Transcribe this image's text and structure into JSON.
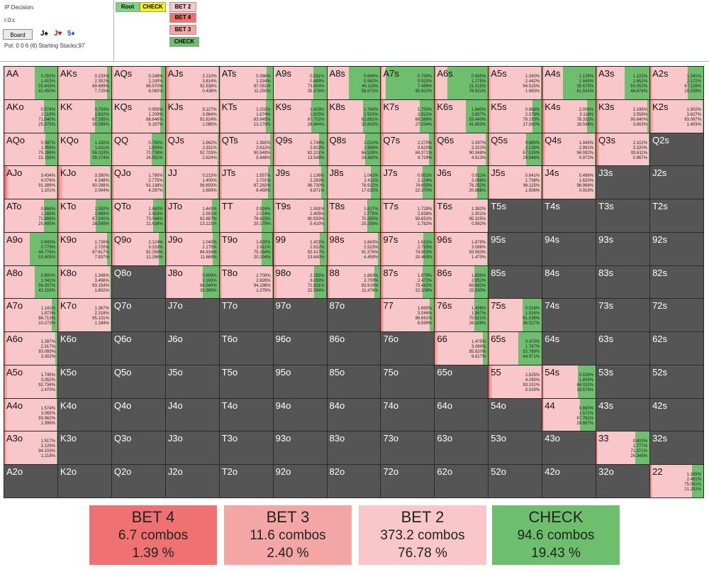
{
  "header": {
    "decision": "IP Decision:",
    "line": "r:0:c",
    "board_button": "Board",
    "board_cards": [
      {
        "text": "J♠",
        "color": "#000000"
      },
      {
        "text": "J♥",
        "color": "#d40000"
      },
      {
        "text": "5♦",
        "color": "#1f4fd8"
      }
    ],
    "pot_text": "Pot: 0 0 6 (6) Starting Stacks:97"
  },
  "nav": {
    "root": "Root",
    "check": "CHECK",
    "bet2": "BET 2",
    "bet4": "BET 4",
    "bet3": "BET 3",
    "check2": "CHECK"
  },
  "colors": {
    "bet4": "#f07171",
    "bet3": "#f4a6a6",
    "bet2": "#f9c7c9",
    "check": "#6dbf6d",
    "root": "#7cd67c",
    "check_nav": "#f5f500",
    "not_in_range": "#555555"
  },
  "ranks": [
    "A",
    "K",
    "Q",
    "J",
    "T",
    "9",
    "8",
    "7",
    "6",
    "5",
    "4",
    "3",
    "2"
  ],
  "cells": {
    "AA": [
      "0.292%",
      "1.415%",
      "55.843%",
      "42.450%"
    ],
    "AKs": [
      "0.233%",
      "2.352%",
      "89.689%",
      "7.725%"
    ],
    "AQs": [
      "0.248%",
      "2.100%",
      "89.570%",
      "8.082%"
    ],
    "AJs": [
      "3.210%",
      "3.814%",
      "92.538%",
      "0.438%"
    ],
    "ATs": [
      "0.366%",
      "1.334%",
      "87.051%",
      "11.250%"
    ],
    "A9s": [
      "0.531%",
      "0.489%",
      "73.604%",
      "25.376%"
    ],
    "A8s": [
      "0.646%",
      "0.562%",
      "40.118%",
      "58.672%"
    ],
    "A7s": [
      "0.759%",
      "0.920%",
      "7.499%",
      "90.822%"
    ],
    "A6s": [
      "0.685%",
      "1.178%",
      "21.015%",
      "76.922%"
    ],
    "A5s": [
      "1.340%",
      "2.442%",
      "94.525%",
      "1.693%"
    ],
    "A4s": [
      "1.139%",
      "1.645%",
      "35.675%",
      "61.541%"
    ],
    "A3s": [
      "1.222%",
      "1.652%",
      "50.052%",
      "46.674%"
    ],
    "A2s": [
      "1.341%",
      "2.172%",
      "67.228%",
      "29.258%"
    ],
    "AKo": [
      "0.574%",
      "2.119%",
      "71.940%",
      "25.375%"
    ],
    "KK": [
      "0.704%",
      "1.632%",
      "67.265%",
      "30.399%"
    ],
    "KQs": [
      "0.959%",
      "1.209%",
      "88.646%",
      "9.167%"
    ],
    "KJs": [
      "3.127%",
      "3.964%",
      "91.824%",
      "1.085%"
    ],
    "KTs": [
      "1.202%",
      "1.674%",
      "83.945%",
      "13.179%"
    ],
    "K9s": [
      "1.429%",
      "1.925%",
      "67.702%",
      "28.944%"
    ],
    "K8s": [
      "1.764%",
      "2.553%",
      "62.881%",
      "32.802%"
    ],
    "K7s": [
      "1.750%",
      "2.812%",
      "68.366%",
      "27.034%"
    ],
    "K6s": [
      "1.840%",
      "2.857%",
      "53.440%",
      "41.863%"
    ],
    "K5s": [
      "0.868%",
      "2.378%",
      "79.193%",
      "17.560%"
    ],
    "K4s": [
      "2.004%",
      "3.116%",
      "78.332%",
      "16.548%"
    ],
    "K3s": [
      "2.198%",
      "3.558%",
      "90.640%",
      "3.603%"
    ],
    "K2s": [
      "1.902%",
      "3.627%",
      "93.067%",
      "1.403%"
    ],
    "AQo": [
      "0.587%",
      "1.959%",
      "75.286%",
      "22.159%"
    ],
    "KQo": [
      "1.192%",
      "1.611%",
      "58.023%",
      "39.174%"
    ],
    "QQ": [
      "0.750%",
      "1.959%",
      "72.739%",
      "24.551%"
    ],
    "QJs": [
      "1.662%",
      "2.811%",
      "92.703%",
      "2.624%"
    ],
    "QTs": [
      "1.392%",
      "2.612%",
      "90.549%",
      "5.446%"
    ],
    "Q9s": [
      "1.749%",
      "2.602%",
      "82.101%",
      "13.549%"
    ],
    "Q8s": [
      "2.010%",
      "2.968%",
      "66.539%",
      "28.482%"
    ],
    "Q7s": [
      "2.270%",
      "3.620%",
      "84.371%",
      "9.739%"
    ],
    "Q6s": [
      "2.097%",
      "3.322%",
      "90.068%",
      "4.513%"
    ],
    "Q5s": [
      "0.885%",
      "2.138%",
      "67.028%",
      "29.948%"
    ],
    "Q4s": [
      "1.945%",
      "2.991%",
      "94.092%",
      "0.972%"
    ],
    "Q3s": [
      "2.102%",
      "3.320%",
      "93.611%",
      "0.967%"
    ],
    "Q2s": null,
    "AJo": [
      "3.434%",
      "4.076%",
      "91.389%",
      "1.101%"
    ],
    "KJo": [
      "3.350%",
      "4.348%",
      "90.298%",
      "2.004%"
    ],
    "QJo": [
      "1.790%",
      "2.775%",
      "91.138%",
      "4.297%"
    ],
    "JJ": [
      "0.213%",
      "1.400%",
      "96.693%",
      "1.693%"
    ],
    "JTs": [
      "1.557%",
      "2.701%",
      "87.282%",
      "8.459%"
    ],
    "J9s": [
      "1.136%",
      "2.263%",
      "86.730%",
      "9.871%"
    ],
    "J8s": [
      "1.042%",
      "2.411%",
      "78.922%",
      "17.625%"
    ],
    "J7s": [
      "0.851%",
      "2.124%",
      "74.655%",
      "22.370%"
    ],
    "J6s": [
      "0.811%",
      "2.068%",
      "76.252%",
      "20.868%"
    ],
    "J5s": [
      "0.641%",
      "1.738%",
      "96.115%",
      "1.506%"
    ],
    "J4s": [
      "0.496%",
      "1.620%",
      "96.966%",
      "0.919%"
    ],
    "J3s": null,
    "J2s": null,
    "ATo": [
      "0.668%",
      "1.165%",
      "72.668%",
      "25.495%"
    ],
    "KTo": [
      "1.592%",
      "2.469%",
      "67.341%",
      "28.598%"
    ],
    "QTo": [
      "1.860%",
      "2.953%",
      "73.046%",
      "21.638%"
    ],
    "JTo": [
      "1.441%",
      "2.551%",
      "82.887%",
      "13.121%"
    ],
    "TT": [
      "0.924%",
      "2.074%",
      "76.823%",
      "20.179%"
    ],
    "T9s": [
      "1.591%",
      "2.405%",
      "90.593%",
      "5.410%"
    ],
    "T8s": [
      "1.617%",
      "2.775%",
      "70.350%",
      "25.258%"
    ],
    "T7s": [
      "1.728%",
      "2.838%",
      "93.652%",
      "1.782%"
    ],
    "T6s": [
      "1.382%",
      "2.301%",
      "95.325%",
      "0.992%"
    ],
    "T5s": null,
    "T4s": null,
    "T3s": null,
    "T2s": null,
    "A9o": [
      "0.643%",
      "0.779%",
      "46.776%",
      "51.803%"
    ],
    "K9o": [
      "1.726%",
      "2.720%",
      "87.617%",
      "7.937%"
    ],
    "Q9o": [
      "2.124%",
      "3.333%",
      "82.258%",
      "12.286%"
    ],
    "J9o": [
      "1.040%",
      "2.175%",
      "84.916%",
      "11.869%"
    ],
    "T9o": [
      "1.620%",
      "2.811%",
      "75.164%",
      "20.204%"
    ],
    "99": [
      "1.421%",
      "2.922%",
      "82.417%",
      "13.840%"
    ],
    "98s": [
      "1.643%",
      "2.523%",
      "91.376%",
      "4.459%"
    ],
    "97s": [
      "1.621%",
      "2.793%",
      "74.953%",
      "20.463%"
    ],
    "96s": [
      "1.878%",
      "3.086%",
      "93.563%",
      "1.473%"
    ],
    "95s": null,
    "94s": null,
    "93s": null,
    "92s": null,
    "A8o": [
      "0.800%",
      "1.041%",
      "56.007%",
      "42.153%"
    ],
    "K8o": [
      "1.349%",
      "3.456%",
      "93.154%",
      "1.802%"
    ],
    "Q8o": null,
    "J8o": [
      "0.909%",
      "2.163%",
      "66.540%",
      "30.389%"
    ],
    "T8o": [
      "1.700%",
      "2.826%",
      "94.196%",
      "1.279%"
    ],
    "98o": [
      "2.285%",
      "3.093%",
      "71.831%",
      "22.594%"
    ],
    "88": [
      "1.663%",
      "2.739%",
      "83.919%",
      "11.478%"
    ],
    "87s": [
      "1.879%",
      "2.472%",
      "73.442%",
      "22.208%"
    ],
    "86s": [
      "1.835%",
      "2.852%",
      "69.682%",
      "25.530%"
    ],
    "85s": null,
    "84s": null,
    "83s": null,
    "82s": null,
    "A7o": [
      "1.141%",
      "1.873%",
      "86.713%",
      "10.273%"
    ],
    "K7o": [
      "1.367%",
      "2.318%",
      "95.131%",
      "1.184%"
    ],
    "Q7o": null,
    "J7o": null,
    "T7o": null,
    "97o": null,
    "87o": null,
    "77": [
      "1.665%",
      "3.046%",
      "86.691%",
      "8.599%"
    ],
    "76s": [
      "1.406%",
      "1.967%",
      "70.521%",
      "26.106%"
    ],
    "75s": [
      "0.519%",
      "1.916%",
      "61.038%",
      "36.527%"
    ],
    "74s": null,
    "73s": null,
    "72s": null,
    "A6o": [
      "1.287%",
      "2.317%",
      "93.093%",
      "3.302%"
    ],
    "K6o": null,
    "Q6o": null,
    "J6o": null,
    "T6o": null,
    "96o": null,
    "86o": null,
    "76o": null,
    "66": [
      "1.475%",
      "3.089%",
      "85.820%",
      "9.617%"
    ],
    "65s": [
      "0.473%",
      "1.767%",
      "52.789%",
      "44.971%"
    ],
    "64s": null,
    "63s": null,
    "62s": null,
    "A5o": [
      "1.745%",
      "3.052%",
      "92.734%",
      "2.470%"
    ],
    "K5o": null,
    "Q5o": null,
    "J5o": null,
    "T5o": null,
    "95o": null,
    "85o": null,
    "75o": null,
    "65o": null,
    "55": [
      "2.525%",
      "4.295%",
      "93.151%",
      "0.029%"
    ],
    "54s": [
      "0.528%",
      "1.859%",
      "64.033%",
      "33.579%"
    ],
    "53s": null,
    "52s": null,
    "A4o": [
      "1.574%",
      "3.065%",
      "93.962%",
      "1.399%"
    ],
    "K4o": null,
    "Q4o": null,
    "J4o": null,
    "T4o": null,
    "94o": null,
    "84o": null,
    "74o": null,
    "64o": null,
    "54o": null,
    "44": [
      "0.860%",
      "1.572%",
      "67.781%",
      "29.887%"
    ],
    "43s": null,
    "42s": null,
    "A3o": [
      "1.517%",
      "3.129%",
      "94.103%",
      "1.218%"
    ],
    "K3o": null,
    "Q3o": null,
    "J3o": null,
    "T3o": null,
    "93o": null,
    "83o": null,
    "73o": null,
    "63o": null,
    "53o": null,
    "43o": null,
    "33": [
      "0.803%",
      "1.777%",
      "71.071%",
      "26.349%"
    ],
    "32s": null,
    "A2o": null,
    "K2o": null,
    "Q2o": null,
    "J2o": null,
    "T2o": null,
    "92o": null,
    "82o": null,
    "72o": null,
    "62o": null,
    "52o": null,
    "42o": null,
    "32o": null,
    "22": [
      "1.165%",
      "2.481%",
      "75.061%",
      "21.292%"
    ]
  },
  "summary": [
    {
      "label": "BET 4",
      "combos": "6.7 combos",
      "pct": "1.39 %",
      "color": "#f07171"
    },
    {
      "label": "BET 3",
      "combos": "11.6 combos",
      "pct": "2.40 %",
      "color": "#f4a6a6"
    },
    {
      "label": "BET 2",
      "combos": "373.2 combos",
      "pct": "76.78 %",
      "color": "#f9c7c9"
    },
    {
      "label": "CHECK",
      "combos": "94.6 combos",
      "pct": "19.43 %",
      "color": "#6dbf6d"
    }
  ]
}
